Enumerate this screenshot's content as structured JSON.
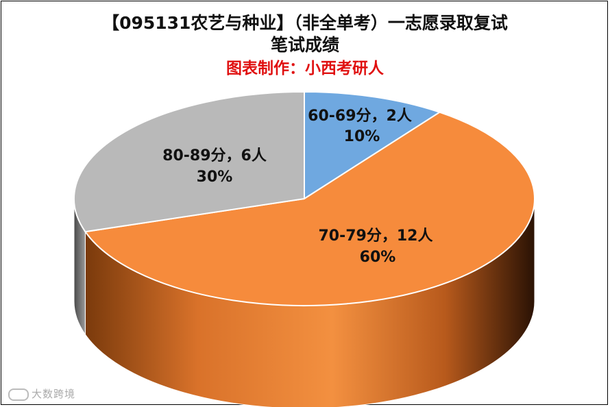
{
  "chart_data": {
    "type": "pie",
    "title": "【095131农艺与种业】（非全单考）一志愿录取复试",
    "title2": "笔试成绩",
    "subtitle": "图表制作：小西考研人",
    "slices": [
      {
        "label": "60-69分，2人",
        "count": 2,
        "percent": "10%",
        "value": 10,
        "color": "#6fa8e0"
      },
      {
        "label": "70-79分，12人",
        "count": 12,
        "percent": "60%",
        "value": 60,
        "color": "#f68b3c"
      },
      {
        "label": "80-89分，6人",
        "count": 6,
        "percent": "30%",
        "value": 30,
        "color": "#b9b9b9"
      }
    ],
    "legend": "none"
  },
  "watermark": {
    "text": "大数跨境"
  }
}
